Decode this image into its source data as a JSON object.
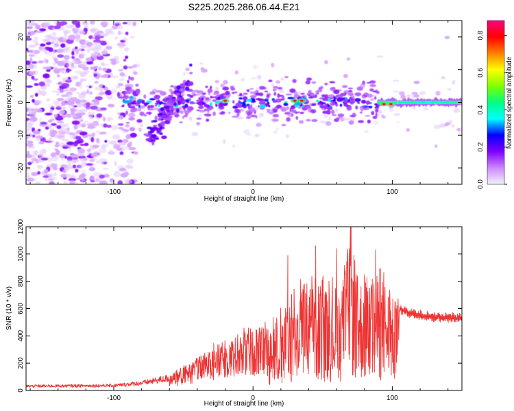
{
  "title": "S225.2025.286.06.44.E21",
  "chart_data": [
    {
      "type": "heatmap",
      "xlabel": "Height of straight line (km)",
      "ylabel": "Frequency (Hz)",
      "xlim": [
        -163,
        150
      ],
      "ylim": [
        -25,
        25
      ],
      "xticks": [
        -100,
        0,
        100
      ],
      "yticks": [
        -20,
        -10,
        0,
        10,
        20
      ],
      "colorbar": {
        "label": "Normalized spectral amplitude",
        "range": [
          0.0,
          0.88
        ],
        "ticks": [
          "0.0",
          "0.2",
          "0.4",
          "0.6",
          "0.8"
        ],
        "colors": [
          "#f2f2fb",
          "#cc88ff",
          "#8000ff",
          "#0000ff",
          "#00ffff",
          "#00ff80",
          "#80ff00",
          "#ffff00",
          "#ff8000",
          "#ff0000",
          "#ff0080"
        ]
      },
      "features": [
        {
          "name": "noise-region",
          "x_range": [
            -163,
            -95
          ],
          "freq_range": [
            -25,
            25
          ],
          "amplitude": 0.08
        },
        {
          "name": "main-band",
          "x_range": [
            -95,
            90
          ],
          "freq_center": 0,
          "freq_halfwidth": 3,
          "amplitude": 0.3
        },
        {
          "name": "steady-band",
          "x_range": [
            90,
            150
          ],
          "freq_center": 0,
          "freq_halfwidth": 1.5,
          "amplitude": 0.5
        },
        {
          "name": "diagonal-feature",
          "x_start": -75,
          "x_end": -45,
          "freq_start": -12,
          "freq_end": 8,
          "amplitude": 0.25
        }
      ],
      "peaks": [
        {
          "x": -20,
          "freq": 0.5,
          "amplitude": 0.78
        },
        {
          "x": 30,
          "freq": 0.5,
          "amplitude": 0.82
        },
        {
          "x": 35,
          "freq": 0.5,
          "amplitude": 0.8
        },
        {
          "x": 94,
          "freq": -0.5,
          "amplitude": 0.85
        },
        {
          "x": 99,
          "freq": -0.5,
          "amplitude": 0.85
        }
      ]
    },
    {
      "type": "line",
      "xlabel": "Height of straight line (km)",
      "ylabel": "SNR (10 * v/v)",
      "xlim": [
        -163,
        150
      ],
      "ylim": [
        0,
        1200
      ],
      "xticks": [
        -100,
        0,
        100
      ],
      "yticks": [
        0,
        200,
        400,
        600,
        800,
        1000,
        1200
      ],
      "series": [
        {
          "name": "SNR",
          "color": "#ee3333",
          "envelope_x": [
            -163,
            -100,
            -80,
            -60,
            -45,
            -30,
            -15,
            0,
            15,
            25,
            35,
            45,
            55,
            65,
            70,
            75,
            85,
            95,
            100,
            105,
            115,
            130,
            150
          ],
          "envelope_y": [
            35,
            40,
            60,
            100,
            190,
            300,
            370,
            420,
            470,
            600,
            720,
            760,
            720,
            760,
            1200,
            780,
            820,
            780,
            650,
            600,
            560,
            540,
            530
          ],
          "peaks": [
            [
              25,
              990
            ],
            [
              45,
              1060
            ],
            [
              60,
              1040
            ],
            [
              70,
              1200
            ],
            [
              88,
              1030
            ]
          ]
        }
      ]
    }
  ]
}
